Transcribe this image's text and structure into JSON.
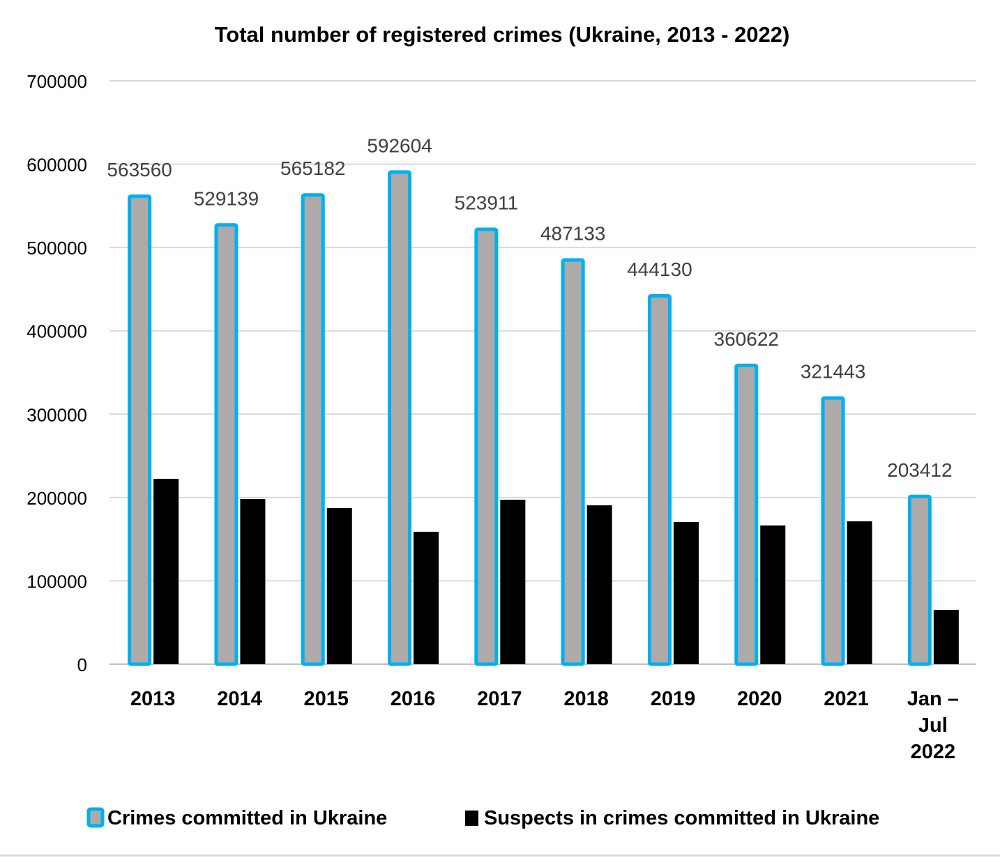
{
  "chart_data": {
    "type": "bar",
    "title": "Total number of registered crimes (Ukraine, 2013 - 2022)",
    "xlabel": "",
    "ylabel": "",
    "ylim": [
      0,
      700000
    ],
    "yticks": [
      0,
      100000,
      200000,
      300000,
      400000,
      500000,
      600000,
      700000
    ],
    "ytick_labels": [
      "0",
      "100000",
      "200000",
      "300000",
      "400000",
      "500000",
      "600000",
      "700000"
    ],
    "grid": true,
    "legend_position": "bottom",
    "categories": [
      [
        "2013"
      ],
      [
        "2014"
      ],
      [
        "2015"
      ],
      [
        "2016"
      ],
      [
        "2017"
      ],
      [
        "2018"
      ],
      [
        "2019"
      ],
      [
        "2020"
      ],
      [
        "2021"
      ],
      [
        "Jan –",
        "Jul",
        "2022"
      ]
    ],
    "series": [
      {
        "name": "Crimes committed in Ukraine",
        "fill": "#aeaaaa",
        "stroke": "#00b0f0",
        "values": [
          563560,
          529139,
          565182,
          592604,
          523911,
          487133,
          444130,
          360622,
          321443,
          203412
        ],
        "data_labels": [
          "563560",
          "529139",
          "565182",
          "592604",
          "523911",
          "487133",
          "444130",
          "360622",
          "321443",
          "203412"
        ]
      },
      {
        "name": "Suspects in crimes committed in Ukraine",
        "fill": "#000000",
        "stroke": "#000000",
        "values": [
          222400,
          198200,
          187300,
          158900,
          197300,
          190600,
          170600,
          166400,
          171400,
          65200
        ],
        "data_labels": []
      }
    ]
  }
}
